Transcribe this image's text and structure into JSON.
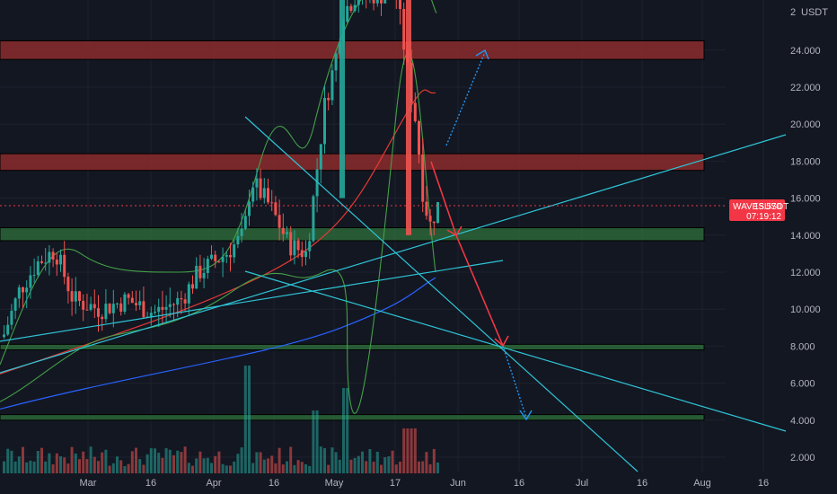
{
  "chart_data": {
    "type": "candlestick",
    "symbol": "WAVESUSDT",
    "last_price": "15.570",
    "countdown": "07:19:12",
    "currency_label": "USDT",
    "colors": {
      "background": "#131722",
      "grid": "#1e222d",
      "up": "#26a69a",
      "down": "#ef5350",
      "resistance_zone": "#8b2c2c",
      "support_zone": "#2d6b3a",
      "trendline": "#2ec4d6",
      "arrow_red": "#f23645",
      "arrow_blue": "#2196f3",
      "price_tag": "#f23645"
    },
    "y_axis": {
      "min": 1.0,
      "max": 26.5,
      "ticks": [
        "2.000",
        "4.000",
        "6.000",
        "8.000",
        "10.000",
        "12.000",
        "14.000",
        "16.000",
        "18.000",
        "20.000",
        "22.000",
        "24.000"
      ],
      "tick_values": [
        2,
        4,
        6,
        8,
        10,
        12,
        14,
        16,
        18,
        20,
        22,
        24
      ],
      "top_tick": "2"
    },
    "x_axis": {
      "labels": [
        "Mar",
        "16",
        "Apr",
        "16",
        "May",
        "17",
        "Jun",
        "16",
        "Jul",
        "16",
        "Aug",
        "16"
      ]
    },
    "zones": [
      {
        "kind": "resistance",
        "low": 23.5,
        "high": 24.5
      },
      {
        "kind": "resistance",
        "low": 17.5,
        "high": 18.4
      },
      {
        "kind": "support",
        "low": 13.7,
        "high": 14.4
      },
      {
        "kind": "support",
        "low": 7.8,
        "high": 8.1
      },
      {
        "kind": "support",
        "low": 4.0,
        "high": 4.3
      }
    ]
  }
}
